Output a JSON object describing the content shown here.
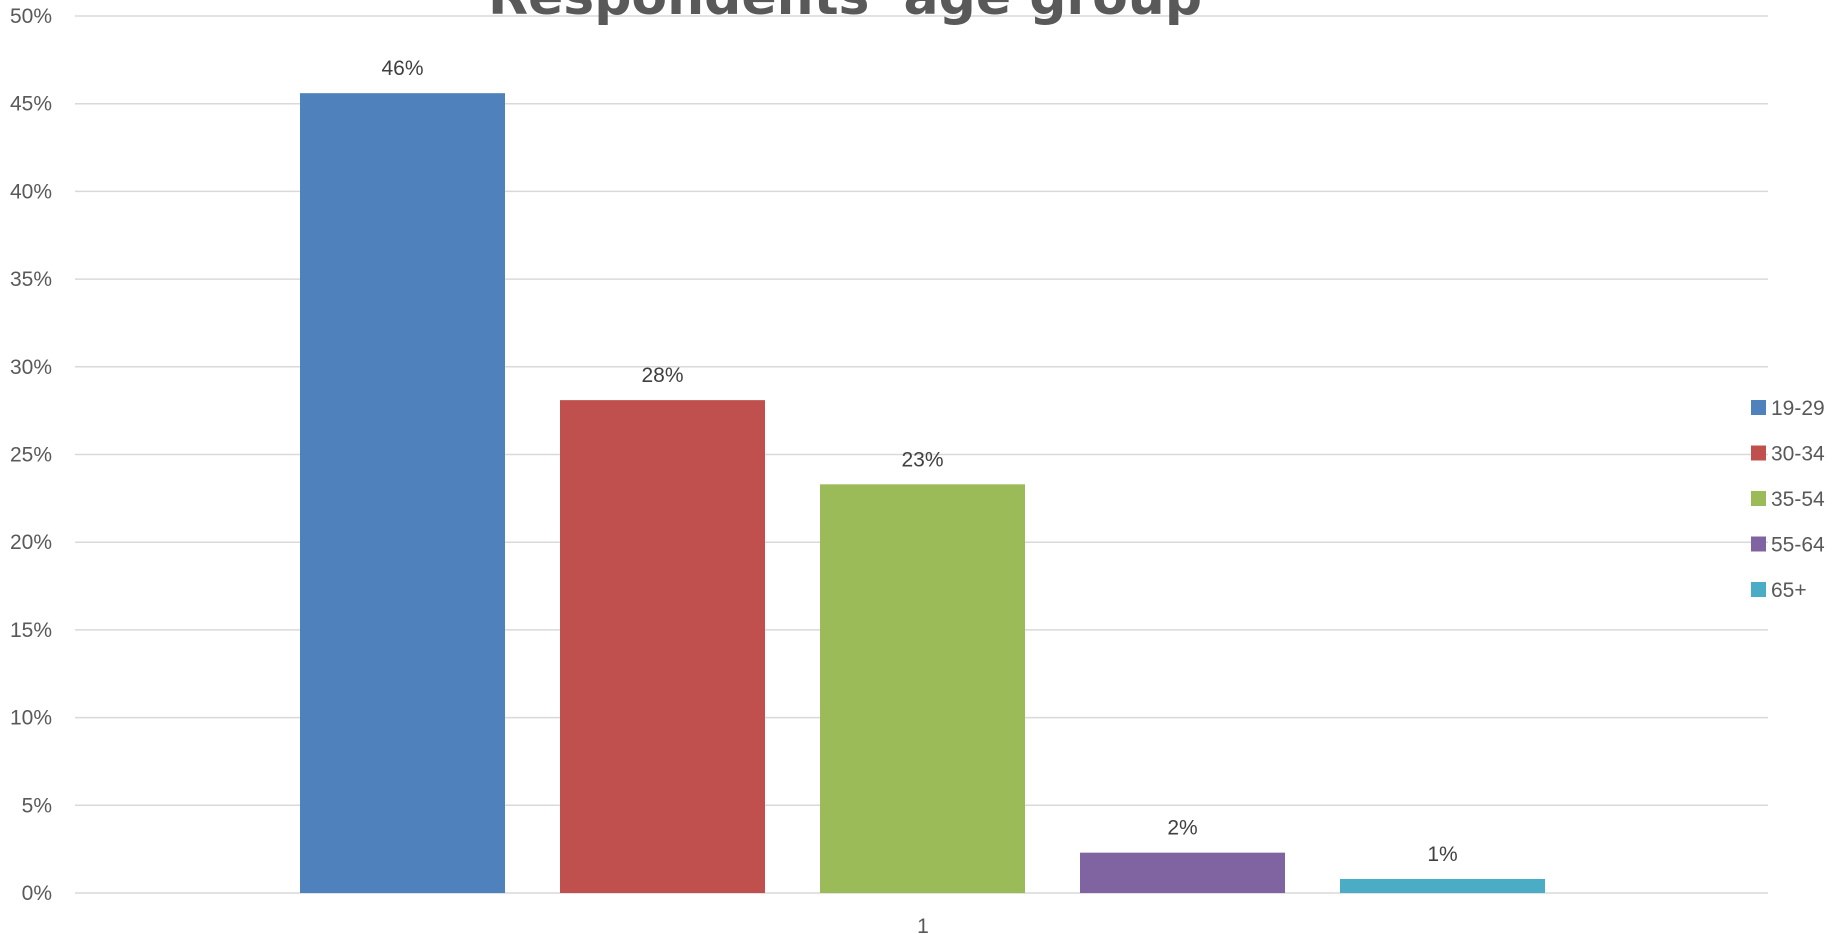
{
  "chart_data": {
    "type": "bar",
    "title": "Respondents' age group",
    "categories": [
      "1"
    ],
    "series": [
      {
        "name": "19-29",
        "values": [
          45.6
        ],
        "label": "46%",
        "color": "#4F81BD"
      },
      {
        "name": "30-34",
        "values": [
          28.1
        ],
        "label": "28%",
        "color": "#C0504D"
      },
      {
        "name": "35-54",
        "values": [
          23.3
        ],
        "label": "23%",
        "color": "#9BBB59"
      },
      {
        "name": "55-64",
        "values": [
          2.3
        ],
        "label": "2%",
        "color": "#8064A2"
      },
      {
        "name": "65+",
        "values": [
          0.8
        ],
        "label": "1%",
        "color": "#4BACC6"
      }
    ],
    "xlabel": "",
    "ylabel": "",
    "ylim": [
      0,
      50
    ],
    "yticks": [
      "0%",
      "5%",
      "10%",
      "15%",
      "20%",
      "25%",
      "30%",
      "35%",
      "40%",
      "45%",
      "50%"
    ],
    "grid": true,
    "legend_position": "right"
  }
}
